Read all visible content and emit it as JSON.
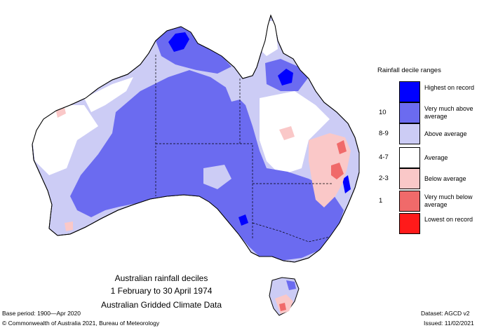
{
  "map": {
    "title_lines": [
      "Australian rainfall deciles",
      "1 February to 30 April 1974",
      "Australian Gridded Climate Data"
    ],
    "region": "Australia"
  },
  "legend": {
    "title": "Rainfall decile ranges",
    "items": [
      {
        "range": "",
        "label": "Highest on record",
        "color": "#0000ff"
      },
      {
        "range": "10",
        "label": "Very much above average",
        "color": "#6b6bf0"
      },
      {
        "range": "8-9",
        "label": "Above average",
        "color": "#ccccf5"
      },
      {
        "range": "4-7",
        "label": "Average",
        "color": "#ffffff"
      },
      {
        "range": "2-3",
        "label": "Below average",
        "color": "#fac8c8"
      },
      {
        "range": "1",
        "label": "Very much below average",
        "color": "#f06a6a"
      },
      {
        "range": "",
        "label": "Lowest on record",
        "color": "#ff1a1a"
      }
    ]
  },
  "footer": {
    "base_period": "Base period: 1900—Apr 2020",
    "copyright": "© Commonwealth of Australia 2021, Bureau of Meteorology",
    "dataset": "Dataset: AGCD v2",
    "issued": "Issued: 11/02/2021"
  }
}
